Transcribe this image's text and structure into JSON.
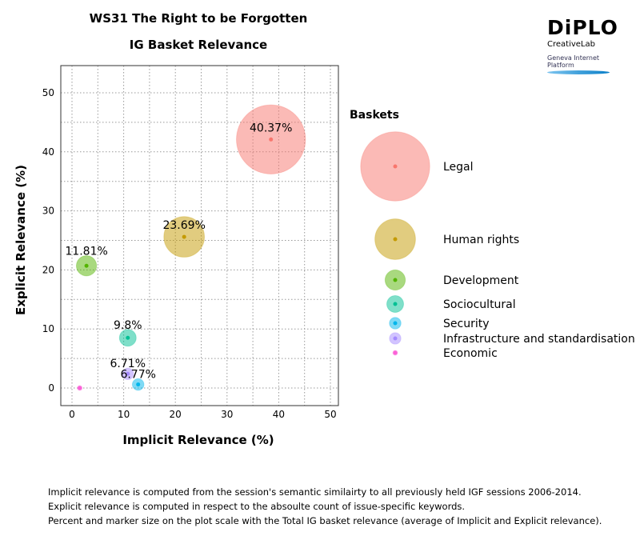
{
  "chart_data": {
    "type": "scatter",
    "title": "WS31 The Right  to be Forgotten",
    "subtitle": "IG Basket Relevance",
    "xlabel": "Implicit Relevance (%)",
    "ylabel": "Explicit Relevance (%)",
    "xlim": [
      -2,
      51
    ],
    "ylim": [
      -2,
      55
    ],
    "xticks": [
      0,
      10,
      20,
      30,
      40,
      50
    ],
    "yticks": [
      0,
      10,
      20,
      30,
      40,
      50
    ],
    "grid": true,
    "legend_title": "Baskets",
    "legend_position": "right",
    "series": [
      {
        "name": "Legal",
        "x": 38.5,
        "y": 42.1,
        "label": "40.37%",
        "size": 40.37,
        "color": "#F8766D"
      },
      {
        "name": "Human rights",
        "x": 21.7,
        "y": 25.6,
        "label": "23.69%",
        "size": 23.69,
        "color": "#C49A00"
      },
      {
        "name": "Development",
        "x": 2.8,
        "y": 20.7,
        "label": "11.81%",
        "size": 11.81,
        "color": "#53B400"
      },
      {
        "name": "Sociocultural",
        "x": 10.8,
        "y": 8.5,
        "label": "9.8%",
        "size": 9.8,
        "color": "#00C094"
      },
      {
        "name": "Security",
        "x": 12.8,
        "y": 0.6,
        "label": "6.77%",
        "size": 6.77,
        "color": "#00B6EB"
      },
      {
        "name": "Infrastructure and standardisation",
        "x": 10.8,
        "y": 2.4,
        "label": "6.71%",
        "size": 6.71,
        "color": "#A58AFF"
      },
      {
        "name": "Economic",
        "x": 1.5,
        "y": 0,
        "label": "",
        "size": 2.5,
        "color": "#FB61D7"
      }
    ]
  },
  "logo": {
    "brand": "DiPLO",
    "sub": "CreativeLab",
    "tagline": "Geneva Internet Platform"
  },
  "notes": [
    "Implicit relevance is computed from the session's semantic similairty to all previously held IGF sessions 2006-2014.",
    "Explicit relevance is computed in respect to the absoulte count of issue-specific keywords.",
    "Percent and marker size on the plot scale with the Total IG basket relevance (average of Implicit and Explicit relevance)."
  ]
}
